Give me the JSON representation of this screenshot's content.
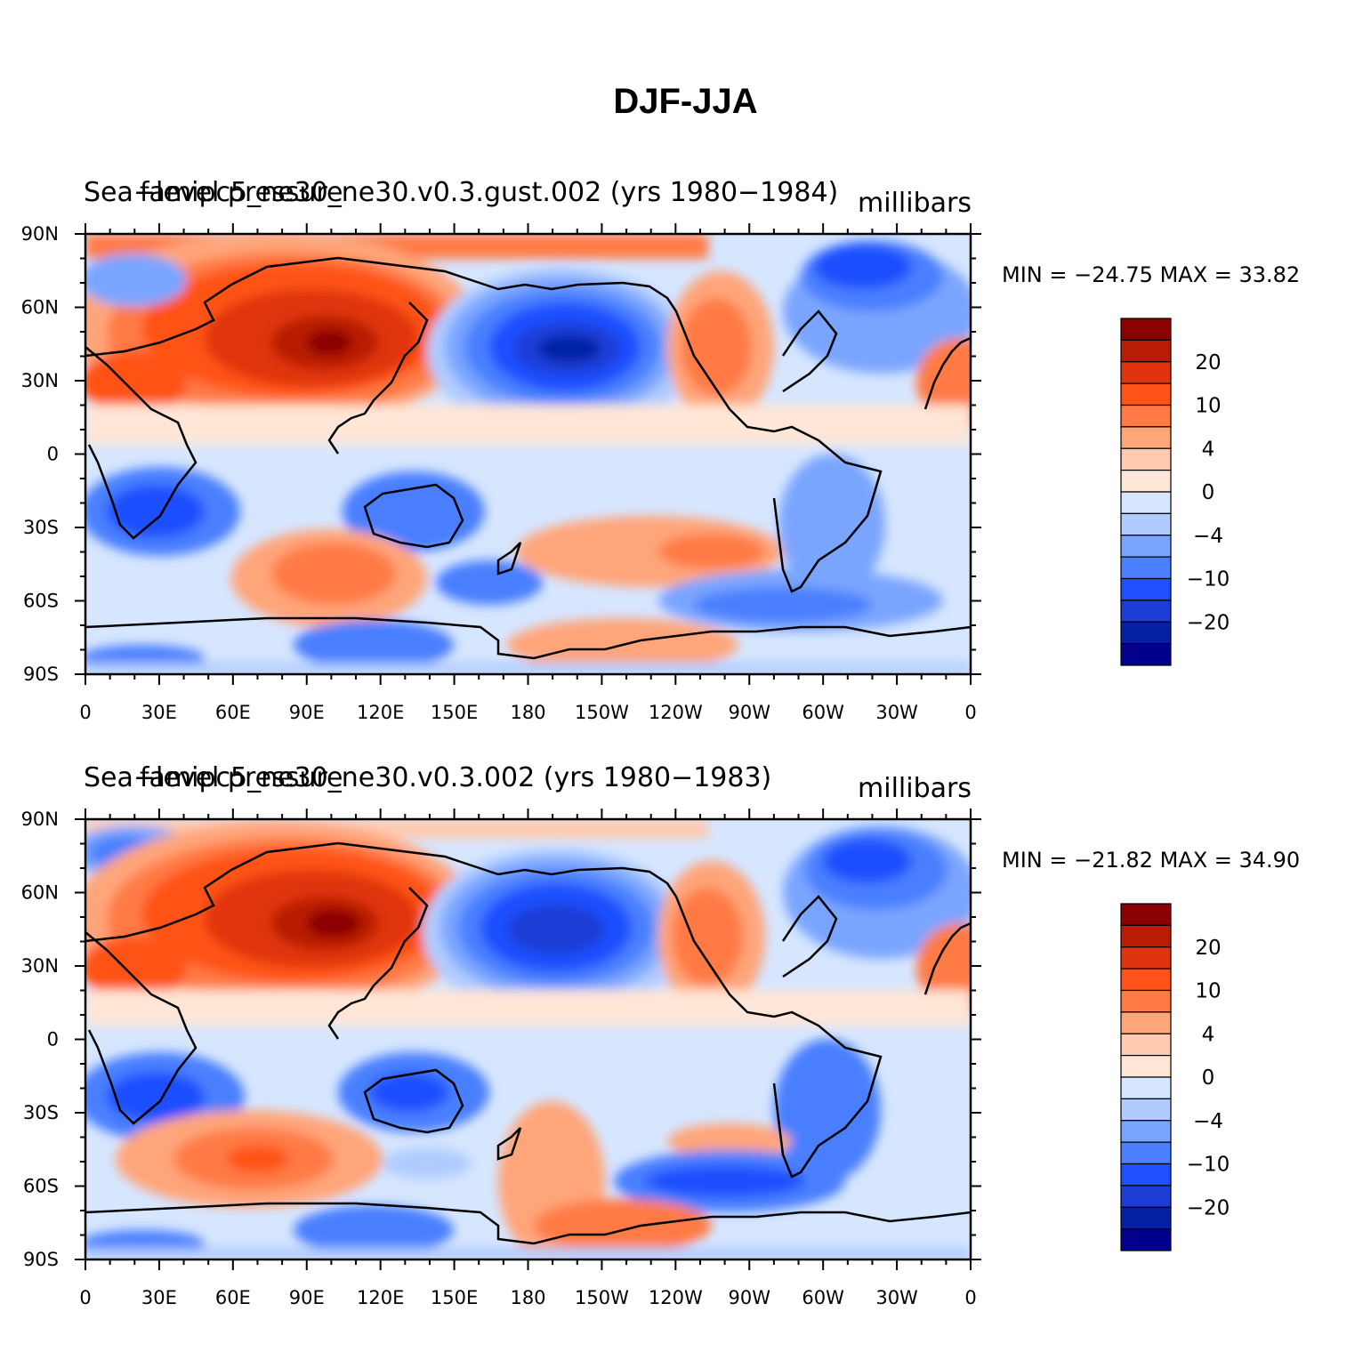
{
  "figure": {
    "title": "DJF-JJA"
  },
  "colormap": {
    "colors": [
      "#00008c",
      "#0620a4",
      "#1c3cd6",
      "#1e50ff",
      "#4a7fff",
      "#7aa5ff",
      "#b0ccff",
      "#d6e6ff",
      "#ffe6d6",
      "#ffcab0",
      "#ffa57a",
      "#ff7a45",
      "#ff5319",
      "#e0340e",
      "#b81d04",
      "#8b0000"
    ],
    "tick_labels": [
      "20",
      "10",
      "4",
      "0",
      "−4",
      "−10",
      "−20"
    ]
  },
  "axes": {
    "lat_labels": [
      "90N",
      "60N",
      "30N",
      "0",
      "30S",
      "60S",
      "90S"
    ],
    "lon_labels": [
      "0",
      "30E",
      "60E",
      "90E",
      "120E",
      "150E",
      "180",
      "150W",
      "120W",
      "90W",
      "60W",
      "30W",
      "0"
    ]
  },
  "panels": [
    {
      "left_label": "Sea−level pressure",
      "case_label": "famipc5_ne30_ne30.v0.3.gust.002 (yrs 1980−1984)",
      "units": "millibars",
      "min_label": "MIN = −24.75",
      "max_label": "MAX =   33.82",
      "min": -24.75,
      "max": 33.82
    },
    {
      "left_label": "Sea−level pressure",
      "case_label": "famipc5_ne30_ne30.v0.3.002 (yrs 1980−1983)",
      "units": "millibars",
      "min_label": "MIN = −21.82",
      "max_label": "MAX =   34.90",
      "min": -21.82,
      "max": 34.9
    }
  ]
}
